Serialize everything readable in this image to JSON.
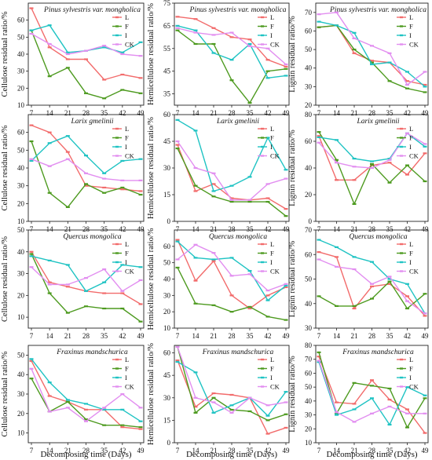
{
  "figure": {
    "x_axis_title": "Decomposing time (Days)",
    "row_labels": [
      "Pinus sylvestris var. mongholica",
      "Larix gmelinii",
      "Quercus mongolica",
      "Fraxinus mandschurica"
    ],
    "col_ylabels": [
      "Cellulose residual ratio/%",
      "Hemicellulose residual ratio/%",
      "Lignin residual ratio/%"
    ],
    "series_names": [
      "L",
      "F",
      "I",
      "CK"
    ],
    "colors": {
      "L": "#f26b6b",
      "F": "#4d9a1f",
      "I": "#1fc3c3",
      "CK": "#e28ef0"
    },
    "marker": "dash",
    "x_ticks": [
      7,
      14,
      21,
      28,
      35,
      42,
      49
    ]
  },
  "chart_data": [
    {
      "type": "line",
      "row": 0,
      "col": 0,
      "title": "Pinus sylvestris var. mongholica",
      "ylabel": "Cellulose residual ratio/%",
      "xlabel": "Decomposing time (Days)",
      "x": [
        7,
        14,
        21,
        28,
        35,
        42,
        49
      ],
      "ylim": [
        10,
        70
      ],
      "yticks": [
        10,
        20,
        30,
        40,
        50,
        60
      ],
      "legend": "top-right",
      "series": [
        {
          "name": "L",
          "values": [
            67,
            44,
            37,
            37,
            25,
            28,
            26
          ]
        },
        {
          "name": "F",
          "values": [
            54,
            27,
            32,
            17,
            14,
            19,
            17
          ]
        },
        {
          "name": "I",
          "values": [
            54,
            57,
            41,
            42,
            44,
            41,
            47
          ]
        },
        {
          "name": "CK",
          "values": [
            52,
            46,
            40,
            42,
            45,
            40,
            39
          ]
        }
      ]
    },
    {
      "type": "line",
      "row": 0,
      "col": 1,
      "title": "Pinus sylvestris var. mongholica",
      "ylabel": "Hemicellulose residual ratio/%",
      "xlabel": "Decomposing time (Days)",
      "x": [
        7,
        14,
        21,
        28,
        35,
        42,
        49
      ],
      "ylim": [
        30,
        75
      ],
      "yticks": [
        35,
        45,
        55,
        65,
        75
      ],
      "legend": "top-right",
      "series": [
        {
          "name": "L",
          "values": [
            69,
            68,
            64,
            60,
            59,
            50,
            47
          ]
        },
        {
          "name": "F",
          "values": [
            63,
            57,
            57,
            41,
            31,
            45,
            46
          ]
        },
        {
          "name": "I",
          "values": [
            65,
            63,
            53,
            50,
            57,
            42,
            43
          ]
        },
        {
          "name": "CK",
          "values": [
            64,
            62,
            61,
            62,
            56,
            55,
            48
          ]
        }
      ]
    },
    {
      "type": "line",
      "row": 0,
      "col": 2,
      "title": "Pinus sylvestris var. mongholica",
      "ylabel": "Lignin residual ratio/%",
      "xlabel": "Decomposing time (Days)",
      "x": [
        7,
        14,
        21,
        28,
        35,
        42,
        49
      ],
      "ylim": [
        20,
        75
      ],
      "yticks": [
        20,
        30,
        40,
        50,
        60,
        70
      ],
      "legend": "top-right",
      "series": [
        {
          "name": "L",
          "values": [
            62,
            63,
            48,
            44,
            43,
            33,
            31
          ]
        },
        {
          "name": "F",
          "values": [
            62,
            63,
            50,
            43,
            33,
            29,
            27
          ]
        },
        {
          "name": "I",
          "values": [
            65,
            63,
            59,
            42,
            43,
            38,
            30
          ]
        },
        {
          "name": "CK",
          "values": [
            69,
            70,
            56,
            52,
            48,
            31,
            38
          ]
        }
      ]
    },
    {
      "type": "line",
      "row": 1,
      "col": 0,
      "title": "Larix gmelinii",
      "ylabel": "Cellulose residual ratio/%",
      "xlabel": "Decomposing time (Days)",
      "x": [
        7,
        14,
        21,
        28,
        35,
        42,
        49
      ],
      "ylim": [
        10,
        70
      ],
      "yticks": [
        10,
        20,
        30,
        40,
        50,
        60
      ],
      "legend": "top-right",
      "series": [
        {
          "name": "L",
          "values": [
            64,
            60,
            49,
            30,
            29,
            28,
            27
          ]
        },
        {
          "name": "F",
          "values": [
            55,
            26,
            18,
            31,
            26,
            29,
            25
          ]
        },
        {
          "name": "I",
          "values": [
            44,
            54,
            58,
            47,
            37,
            44,
            45
          ]
        },
        {
          "name": "CK",
          "values": [
            45,
            41,
            45,
            37,
            34,
            33,
            33
          ]
        }
      ]
    },
    {
      "type": "line",
      "row": 1,
      "col": 1,
      "title": "Larix gmelinii",
      "ylabel": "Hemicellulose residual ratio/%",
      "xlabel": "Decomposing time (Days)",
      "x": [
        7,
        14,
        21,
        28,
        35,
        42,
        49
      ],
      "ylim": [
        0,
        60
      ],
      "yticks": [
        0,
        15,
        30,
        45,
        60
      ],
      "legend": "top-right",
      "series": [
        {
          "name": "L",
          "values": [
            43,
            17,
            21,
            13,
            12,
            13,
            7
          ]
        },
        {
          "name": "F",
          "values": [
            41,
            20,
            14,
            11,
            11,
            11,
            3
          ]
        },
        {
          "name": "I",
          "values": [
            57,
            51,
            17,
            20,
            25,
            47,
            29
          ]
        },
        {
          "name": "CK",
          "values": [
            45,
            30,
            27,
            12,
            12,
            21,
            24
          ]
        }
      ]
    },
    {
      "type": "line",
      "row": 1,
      "col": 2,
      "title": "Larix gmelinii",
      "ylabel": "Lignin residual ratio/%",
      "xlabel": "Decomposing time (Days)",
      "x": [
        7,
        14,
        21,
        28,
        35,
        42,
        49
      ],
      "ylim": [
        0,
        80
      ],
      "yticks": [
        0,
        20,
        40,
        60,
        80
      ],
      "legend": "top-right",
      "series": [
        {
          "name": "L",
          "values": [
            64,
            31,
            31,
            42,
            44,
            35,
            51
          ]
        },
        {
          "name": "F",
          "values": [
            67,
            46,
            13,
            43,
            29,
            42,
            30
          ]
        },
        {
          "name": "I",
          "values": [
            63,
            61,
            47,
            45,
            47,
            66,
            56
          ]
        },
        {
          "name": "CK",
          "values": [
            59,
            44,
            41,
            40,
            46,
            66,
            58
          ]
        }
      ]
    },
    {
      "type": "line",
      "row": 2,
      "col": 0,
      "title": "Quercus mongolica",
      "ylabel": "Cellulose residual ratio/%",
      "xlabel": "Decomposing time (Days)",
      "x": [
        7,
        14,
        21,
        28,
        35,
        42,
        49
      ],
      "ylim": [
        5,
        50
      ],
      "yticks": [
        10,
        20,
        30,
        40,
        50
      ],
      "legend": "top-right",
      "series": [
        {
          "name": "L",
          "values": [
            40,
            26,
            24,
            22,
            21,
            21,
            16
          ]
        },
        {
          "name": "F",
          "values": [
            39,
            21,
            12,
            15,
            14,
            14,
            8
          ]
        },
        {
          "name": "I",
          "values": [
            38,
            36,
            34,
            22,
            26,
            34,
            33
          ]
        },
        {
          "name": "CK",
          "values": [
            33,
            25,
            25,
            28,
            32,
            22,
            27
          ]
        }
      ]
    },
    {
      "type": "line",
      "row": 2,
      "col": 1,
      "title": "Quercus mongolica",
      "ylabel": "Hemicellulose residual ratio/%",
      "xlabel": "Decomposing time (Days)",
      "x": [
        7,
        14,
        21,
        28,
        35,
        42,
        49
      ],
      "ylim": [
        10,
        70
      ],
      "yticks": [
        10,
        20,
        30,
        40,
        50,
        60
      ],
      "legend": "top-right",
      "series": [
        {
          "name": "L",
          "values": [
            64,
            39,
            51,
            30,
            22,
            30,
            35
          ]
        },
        {
          "name": "F",
          "values": [
            47,
            25,
            24,
            20,
            23,
            17,
            15
          ]
        },
        {
          "name": "I",
          "values": [
            63,
            53,
            52,
            53,
            45,
            27,
            36
          ]
        },
        {
          "name": "CK",
          "values": [
            52,
            61,
            56,
            42,
            43,
            33,
            37
          ]
        }
      ]
    },
    {
      "type": "line",
      "row": 2,
      "col": 2,
      "title": "Quercus mongolica",
      "ylabel": "Lignin residual ratio/%",
      "xlabel": "Decomposing time (Days)",
      "x": [
        7,
        14,
        21,
        28,
        35,
        42,
        49
      ],
      "ylim": [
        30,
        70
      ],
      "yticks": [
        30,
        40,
        50,
        60,
        70
      ],
      "legend": "top-right",
      "series": [
        {
          "name": "L",
          "values": [
            61,
            59,
            38,
            47,
            48,
            43,
            35
          ]
        },
        {
          "name": "F",
          "values": [
            43,
            39,
            39,
            42,
            49,
            38,
            44
          ]
        },
        {
          "name": "I",
          "values": [
            66,
            63,
            59,
            57,
            50,
            48,
            36
          ]
        },
        {
          "name": "CK",
          "values": [
            58,
            55,
            54,
            48,
            51,
            41,
            36
          ]
        }
      ]
    },
    {
      "type": "line",
      "row": 3,
      "col": 0,
      "title": "Fraxinus mandschurica",
      "ylabel": "Cellulose residual ratio/%",
      "xlabel": "Decomposing time (Days)",
      "x": [
        7,
        14,
        21,
        28,
        35,
        42,
        49
      ],
      "ylim": [
        5,
        55
      ],
      "yticks": [
        10,
        20,
        30,
        40,
        50
      ],
      "legend": "top-right",
      "series": [
        {
          "name": "L",
          "values": [
            47,
            29,
            26,
            22,
            22,
            13,
            12
          ]
        },
        {
          "name": "F",
          "values": [
            38,
            21,
            26,
            17,
            14,
            14,
            13
          ]
        },
        {
          "name": "I",
          "values": [
            48,
            36,
            27,
            25,
            22,
            22,
            16
          ]
        },
        {
          "name": "CK",
          "values": [
            43,
            21,
            23,
            16,
            23,
            30,
            23
          ]
        }
      ]
    },
    {
      "type": "line",
      "row": 3,
      "col": 1,
      "title": "Fraxinus mandschurica",
      "ylabel": "Hemicellulose residual ratio/%",
      "xlabel": "Decomposing time (Days)",
      "x": [
        7,
        14,
        21,
        28,
        35,
        42,
        49
      ],
      "ylim": [
        0,
        65
      ],
      "yticks": [
        0,
        15,
        30,
        45,
        60
      ],
      "legend": "top-right",
      "series": [
        {
          "name": "L",
          "values": [
            55,
            24,
            33,
            32,
            30,
            6,
            10
          ]
        },
        {
          "name": "F",
          "values": [
            64,
            20,
            30,
            22,
            21,
            15,
            19
          ]
        },
        {
          "name": "I",
          "values": [
            54,
            47,
            20,
            25,
            30,
            18,
            34
          ]
        },
        {
          "name": "CK",
          "values": [
            64,
            30,
            27,
            20,
            30,
            25,
            27
          ]
        }
      ]
    },
    {
      "type": "line",
      "row": 3,
      "col": 2,
      "title": "Fraxinus mandschurica",
      "ylabel": "Lignin residual ratio/%",
      "xlabel": "Decomposing time (Days)",
      "x": [
        7,
        14,
        21,
        28,
        35,
        42,
        49
      ],
      "ylim": [
        10,
        80
      ],
      "yticks": [
        10,
        20,
        30,
        40,
        50,
        60,
        70,
        80
      ],
      "legend": "top-right",
      "series": [
        {
          "name": "L",
          "values": [
            72,
            39,
            38,
            55,
            41,
            34,
            17
          ]
        },
        {
          "name": "F",
          "values": [
            75,
            31,
            53,
            51,
            49,
            21,
            42
          ]
        },
        {
          "name": "I",
          "values": [
            68,
            30,
            34,
            42,
            23,
            50,
            44
          ]
        },
        {
          "name": "CK",
          "values": [
            69,
            32,
            25,
            31,
            36,
            31,
            31
          ]
        }
      ]
    }
  ]
}
